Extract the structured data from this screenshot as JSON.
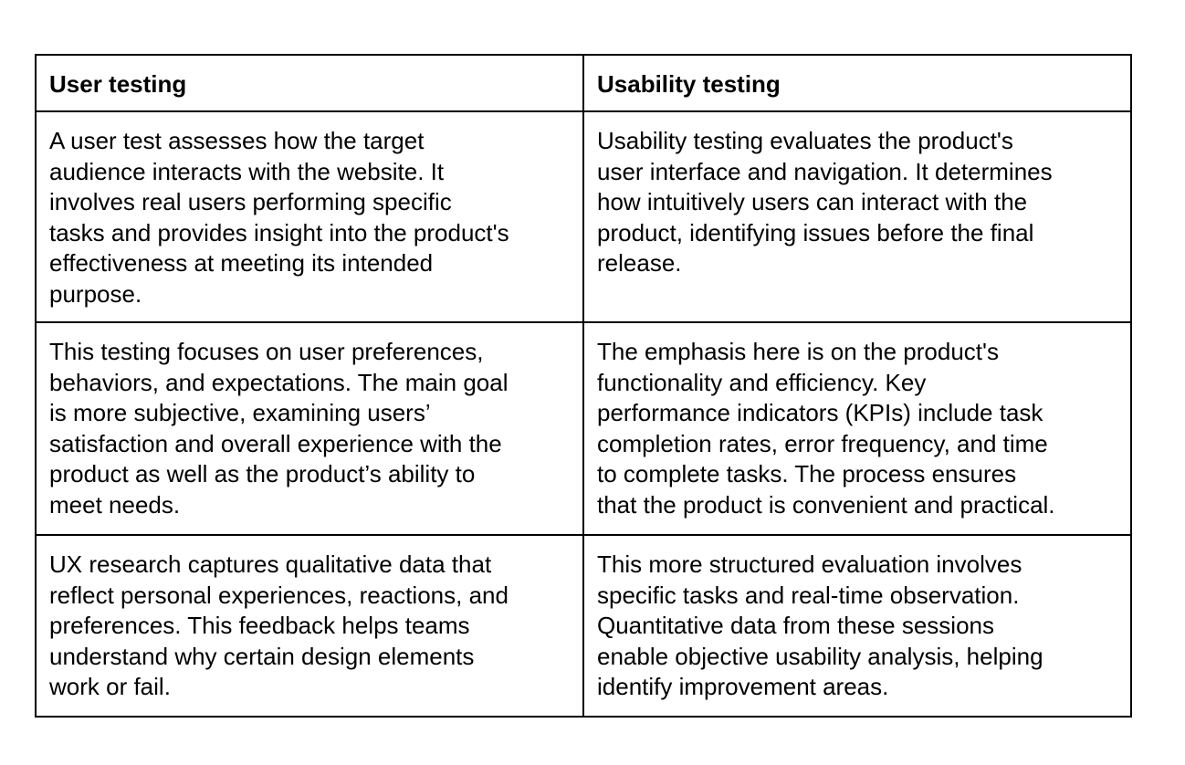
{
  "table": {
    "headers": [
      "User testing",
      "Usability testing"
    ],
    "rows": [
      [
        [
          "A user test assesses how the target",
          "audience interacts with the website. It",
          "involves real users performing specific",
          "tasks and provides insight into the product's",
          "effectiveness at meeting its intended",
          "purpose."
        ],
        [
          "Usability testing evaluates the product's",
          "user interface and navigation. It determines",
          "how intuitively users can interact with the",
          "product, identifying issues before the final",
          "release."
        ]
      ],
      [
        [
          "This testing focuses on user preferences,",
          "behaviors, and expectations. The main goal",
          "is more subjective, examining users’",
          "satisfaction and overall experience with the",
          "product as well as the product’s ability to",
          "meet needs."
        ],
        [
          "The emphasis here is on the product's",
          "functionality and efficiency. Key",
          "performance indicators (KPIs) include task",
          "completion rates, error frequency, and time",
          "to complete tasks. The process ensures",
          "that the product is convenient and practical."
        ]
      ],
      [
        [
          "UX research captures qualitative data that",
          "reflect personal experiences, reactions, and",
          "preferences. This feedback helps teams",
          "understand why certain design elements",
          "work or fail."
        ],
        [
          "This more structured evaluation involves",
          "specific tasks and real-time observation.",
          "Quantitative data from these sessions",
          "enable objective usability analysis, helping",
          "identify improvement areas."
        ]
      ]
    ]
  }
}
